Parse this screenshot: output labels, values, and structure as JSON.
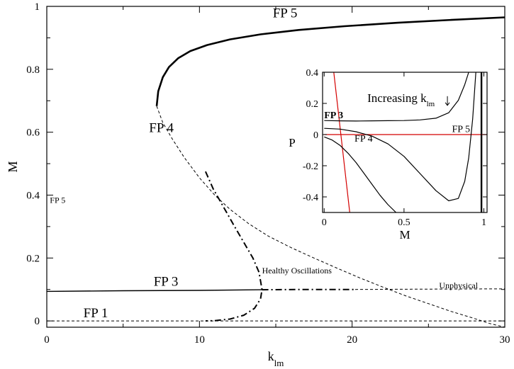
{
  "colors": {
    "axis": "#000000",
    "curve": "#000000",
    "inset_red": "#d40000",
    "background": "#ffffff"
  },
  "chart_data": [
    {
      "type": "line",
      "role": "main",
      "xlabel": "k",
      "xlabel_sub": "lm",
      "ylabel": "M",
      "xlim": [
        0,
        30
      ],
      "ylim": [
        -0.02,
        1.0
      ],
      "xticks": [
        0,
        10,
        20,
        30
      ],
      "yticks": [
        0,
        0.2,
        0.4,
        0.6,
        0.8,
        1
      ],
      "grid": false,
      "annotations": [
        {
          "text": "FP 5",
          "x": 14.8,
          "y": 0.965,
          "style": "fp"
        },
        {
          "text": "FP 4",
          "x": 6.7,
          "y": 0.6,
          "style": "fp"
        },
        {
          "text": "FP 5",
          "x": 0.2,
          "y": 0.375,
          "style": "small"
        },
        {
          "text": "Healthy Oscillations",
          "x": 14.1,
          "y": 0.151,
          "style": "small"
        },
        {
          "text": "FP 3",
          "x": 7.0,
          "y": 0.112,
          "style": "fp"
        },
        {
          "text": "Unphysical",
          "x": 25.7,
          "y": 0.104,
          "style": "small"
        },
        {
          "text": "FP 1",
          "x": 2.4,
          "y": 0.012,
          "style": "fp"
        }
      ],
      "series": [
        {
          "style": "solid-thick",
          "x": [
            7.2,
            7.3,
            7.6,
            8.0,
            8.6,
            9.4,
            10.5,
            12,
            14,
            16.5,
            19.5,
            23,
            26.5,
            30
          ],
          "y": [
            0.683,
            0.73,
            0.775,
            0.807,
            0.835,
            0.858,
            0.877,
            0.895,
            0.911,
            0.925,
            0.937,
            0.948,
            0.957,
            0.965
          ]
        },
        {
          "style": "dashed",
          "x": [
            7.2,
            7.6,
            8.2,
            9.0,
            10.0,
            11.0,
            12.0,
            13.2,
            14.5,
            16.0,
            17.5,
            19.0,
            20.5,
            22.0,
            23.5,
            25.0,
            26.5,
            28.0,
            29.0,
            30.0
          ],
          "y": [
            0.683,
            0.63,
            0.58,
            0.52,
            0.455,
            0.4,
            0.355,
            0.31,
            0.27,
            0.233,
            0.2,
            0.168,
            0.137,
            0.108,
            0.08,
            0.055,
            0.03,
            0.008,
            -0.008,
            -0.02
          ]
        },
        {
          "style": "solid",
          "x": [
            0,
            5,
            10,
            14.1
          ],
          "y": [
            0.094,
            0.096,
            0.097,
            0.099
          ]
        },
        {
          "style": "dashdot",
          "x": [
            14.1,
            17,
            20.2
          ],
          "y": [
            0.099,
            0.1,
            0.1
          ]
        },
        {
          "style": "dashed",
          "x": [
            20.2,
            24,
            30
          ],
          "y": [
            0.1,
            0.101,
            0.102
          ]
        },
        {
          "style": "dashdot",
          "x": [
            10.4,
            10.9,
            11.6,
            12.3,
            12.9,
            13.5,
            13.9,
            14.1,
            14.0,
            13.6,
            12.9,
            12.0,
            11.0,
            10.4
          ],
          "y": [
            0.475,
            0.42,
            0.36,
            0.3,
            0.25,
            0.2,
            0.155,
            0.1,
            0.07,
            0.04,
            0.018,
            0.006,
            0.001,
            0.0
          ]
        },
        {
          "style": "dashed",
          "x": [
            0,
            10.4,
            30
          ],
          "y": [
            0.0,
            0.0,
            0.0
          ]
        }
      ]
    },
    {
      "type": "line",
      "role": "inset",
      "xlabel": "M",
      "ylabel": "P",
      "xlim": [
        -0.01,
        1.02
      ],
      "ylim": [
        -0.5,
        0.4
      ],
      "xticks": [
        0,
        0.5,
        1
      ],
      "yticks": [
        -0.4,
        -0.2,
        0,
        0.2,
        0.4
      ],
      "grid": false,
      "annotations": [
        {
          "text": "Increasing k",
          "sub": "lm",
          "x": 0.27,
          "y": 0.21,
          "style": "in-label"
        },
        {
          "text": "FP 3",
          "x": 0.0,
          "y": 0.105,
          "style": "in-fp-bold"
        },
        {
          "text": "FP 5",
          "x": 0.8,
          "y": 0.015,
          "style": "in-fp"
        },
        {
          "text": "FP 4",
          "x": 0.19,
          "y": -0.045,
          "style": "in-fp"
        }
      ],
      "series": [
        {
          "color": "red",
          "x": [
            0.0,
            1.02
          ],
          "y": [
            0.0,
            0.0
          ]
        },
        {
          "color": "red",
          "x": [
            0.06,
            0.16
          ],
          "y": [
            0.4,
            -0.5
          ]
        },
        {
          "color": "black",
          "x": [
            0.0,
            0.1,
            0.2,
            0.3,
            0.4,
            0.5,
            0.6,
            0.7,
            0.78,
            0.84,
            0.88,
            0.905
          ],
          "y": [
            0.09,
            0.088,
            0.087,
            0.088,
            0.089,
            0.09,
            0.094,
            0.105,
            0.14,
            0.22,
            0.32,
            0.4
          ]
        },
        {
          "color": "black",
          "x": [
            0.0,
            0.1,
            0.2,
            0.3,
            0.4,
            0.5,
            0.6,
            0.7,
            0.78,
            0.84,
            0.88,
            0.905,
            0.93,
            0.95
          ],
          "y": [
            0.04,
            0.035,
            0.018,
            -0.01,
            -0.06,
            -0.14,
            -0.25,
            -0.36,
            -0.425,
            -0.41,
            -0.3,
            -0.15,
            0.1,
            0.4
          ]
        },
        {
          "color": "black",
          "x": [
            0.0,
            0.05,
            0.1,
            0.15,
            0.2,
            0.25,
            0.3,
            0.35,
            0.4,
            0.45
          ],
          "y": [
            -0.015,
            -0.035,
            -0.07,
            -0.12,
            -0.18,
            -0.25,
            -0.32,
            -0.39,
            -0.45,
            -0.5
          ]
        },
        {
          "color": "black-thick",
          "x": [
            0.985,
            0.985
          ],
          "y": [
            0.4,
            -0.5
          ]
        }
      ]
    }
  ]
}
